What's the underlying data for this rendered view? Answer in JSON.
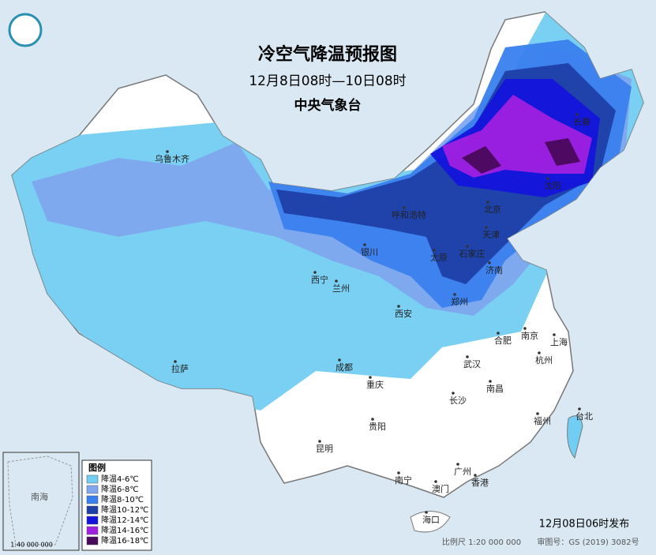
{
  "header": {
    "title": "冷空气降温预报图",
    "subtitle": "12月8日08时—10日08时",
    "agency": "中央气象台"
  },
  "legend": {
    "title": "图例",
    "items": [
      {
        "label": "降温4-6℃",
        "color": "#72cdf2"
      },
      {
        "label": "降温6-8℃",
        "color": "#7fa6ee"
      },
      {
        "label": "降温8-10℃",
        "color": "#3a7fee"
      },
      {
        "label": "降温10-12℃",
        "color": "#1d3fa6"
      },
      {
        "label": "降温12-14℃",
        "color": "#1414dc"
      },
      {
        "label": "降温14-16℃",
        "color": "#a020e0"
      },
      {
        "label": "降温16-18℃",
        "color": "#4a0a5c"
      }
    ]
  },
  "cities": [
    "乌鲁木齐",
    "呼和浩特",
    "北京",
    "天津",
    "银川",
    "太原",
    "石家庄",
    "济南",
    "西宁",
    "兰州",
    "郑州",
    "西安",
    "合肥",
    "南京",
    "上海",
    "拉萨",
    "成都",
    "武汉",
    "杭州",
    "重庆",
    "南昌",
    "长沙",
    "贵阳",
    "福州",
    "台北",
    "昆明",
    "南宁",
    "广州",
    "香港",
    "澳门",
    "海口",
    "长春",
    "沈阳"
  ],
  "inset": {
    "sea": "南海",
    "scale": "1:40 000 000"
  },
  "footer": {
    "issued": "12月08日06时发布",
    "scale": "比例尺 1:20 000 000",
    "approval": "审图号：GS (2019) 3082号"
  }
}
